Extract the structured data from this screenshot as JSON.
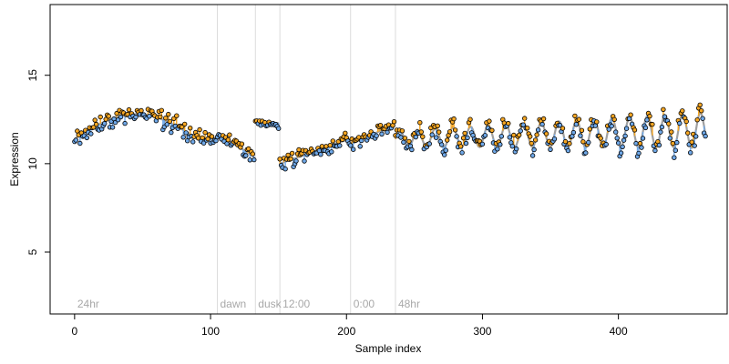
{
  "chart_data": {
    "type": "scatter",
    "xlabel": "Sample index",
    "ylabel": "Expression",
    "xlim": [
      -18,
      480
    ],
    "ylim": [
      1.5,
      19.0
    ],
    "x_ticks": [
      0,
      100,
      200,
      300,
      400
    ],
    "y_ticks": [
      5,
      10,
      15
    ],
    "grid": false,
    "legend": "none",
    "point_fill_above": "#f5a623",
    "point_fill_below": "#6fa8e8",
    "fitted_line_color": "#a0a0a0",
    "divider_color": "#dcdcdc",
    "region_label_color": "#a8a8a8",
    "regions": [
      {
        "label": "24hr",
        "start": 0,
        "end": 105
      },
      {
        "label": "dawn",
        "start": 105,
        "end": 133
      },
      {
        "label": "dusk",
        "start": 133,
        "end": 151
      },
      {
        "label": "12:00",
        "start": 151,
        "end": 203
      },
      {
        "label": "0:00",
        "start": 203,
        "end": 236
      },
      {
        "label": "48hr",
        "start": 236,
        "end": 465
      }
    ],
    "segments": [
      {
        "start": 0,
        "end": 105,
        "pattern": "arch",
        "base": 11.4,
        "peak": 12.8,
        "noise": 0.45
      },
      {
        "start": 105,
        "end": 133,
        "pattern": "decline",
        "from": 11.7,
        "to": 10.4,
        "noise": 0.35
      },
      {
        "start": 133,
        "end": 151,
        "pattern": "flat",
        "level": 12.3,
        "noise": 0.25
      },
      {
        "start": 151,
        "end": 203,
        "pattern": "rise",
        "from": 10.0,
        "to": 11.4,
        "noise": 0.4
      },
      {
        "start": 203,
        "end": 236,
        "pattern": "rise",
        "from": 11.1,
        "to": 12.2,
        "noise": 0.35
      },
      {
        "start": 236,
        "end": 465,
        "pattern": "oscillate",
        "mean": 11.4,
        "amp_start": 0.45,
        "amp_end": 1.0,
        "period": 13,
        "trend": 0.5,
        "noise": 0.45
      }
    ]
  }
}
